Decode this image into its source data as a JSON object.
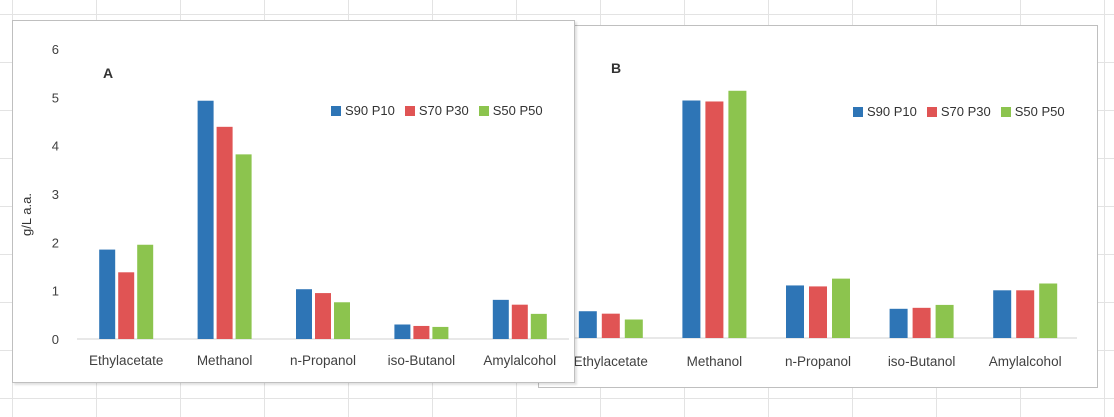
{
  "chart_data": [
    {
      "type": "bar",
      "panel_label": "A",
      "ylabel": "g/L a.a.",
      "categories": [
        "Ethylacetate",
        "Methanol",
        "n-Propanol",
        "iso-Butanol",
        "Amylalcohol"
      ],
      "series": [
        {
          "name": "S90 P10",
          "color": "#2e75b6",
          "values": [
            1.85,
            4.93,
            1.03,
            0.3,
            0.81
          ]
        },
        {
          "name": "S70 P30",
          "color": "#e05454",
          "values": [
            1.38,
            4.39,
            0.95,
            0.27,
            0.71
          ]
        },
        {
          "name": "S50 P50",
          "color": "#8cc44e",
          "values": [
            1.95,
            3.82,
            0.76,
            0.25,
            0.52
          ]
        }
      ],
      "ylim": [
        0,
        6
      ],
      "yticks": [
        "0",
        "1",
        "2",
        "3",
        "4",
        "5",
        "6"
      ],
      "grid": false,
      "legend_position": "top-right"
    },
    {
      "type": "bar",
      "panel_label": "B",
      "ylabel": "",
      "categories": [
        "Ethylacetate",
        "Methanol",
        "n-Propanol",
        "iso-Butanol",
        "Amylalcohol"
      ],
      "series": [
        {
          "name": "S90 P10",
          "color": "#2e75b6",
          "values": [
            0.55,
            4.88,
            1.08,
            0.6,
            0.98
          ]
        },
        {
          "name": "S70 P30",
          "color": "#e05454",
          "values": [
            0.5,
            4.86,
            1.06,
            0.62,
            0.98
          ]
        },
        {
          "name": "S50 P50",
          "color": "#8cc44e",
          "values": [
            0.38,
            5.08,
            1.22,
            0.68,
            1.12
          ]
        }
      ],
      "ylim": [
        0,
        6
      ],
      "yticks": [],
      "grid": false,
      "legend_position": "top-right"
    }
  ]
}
